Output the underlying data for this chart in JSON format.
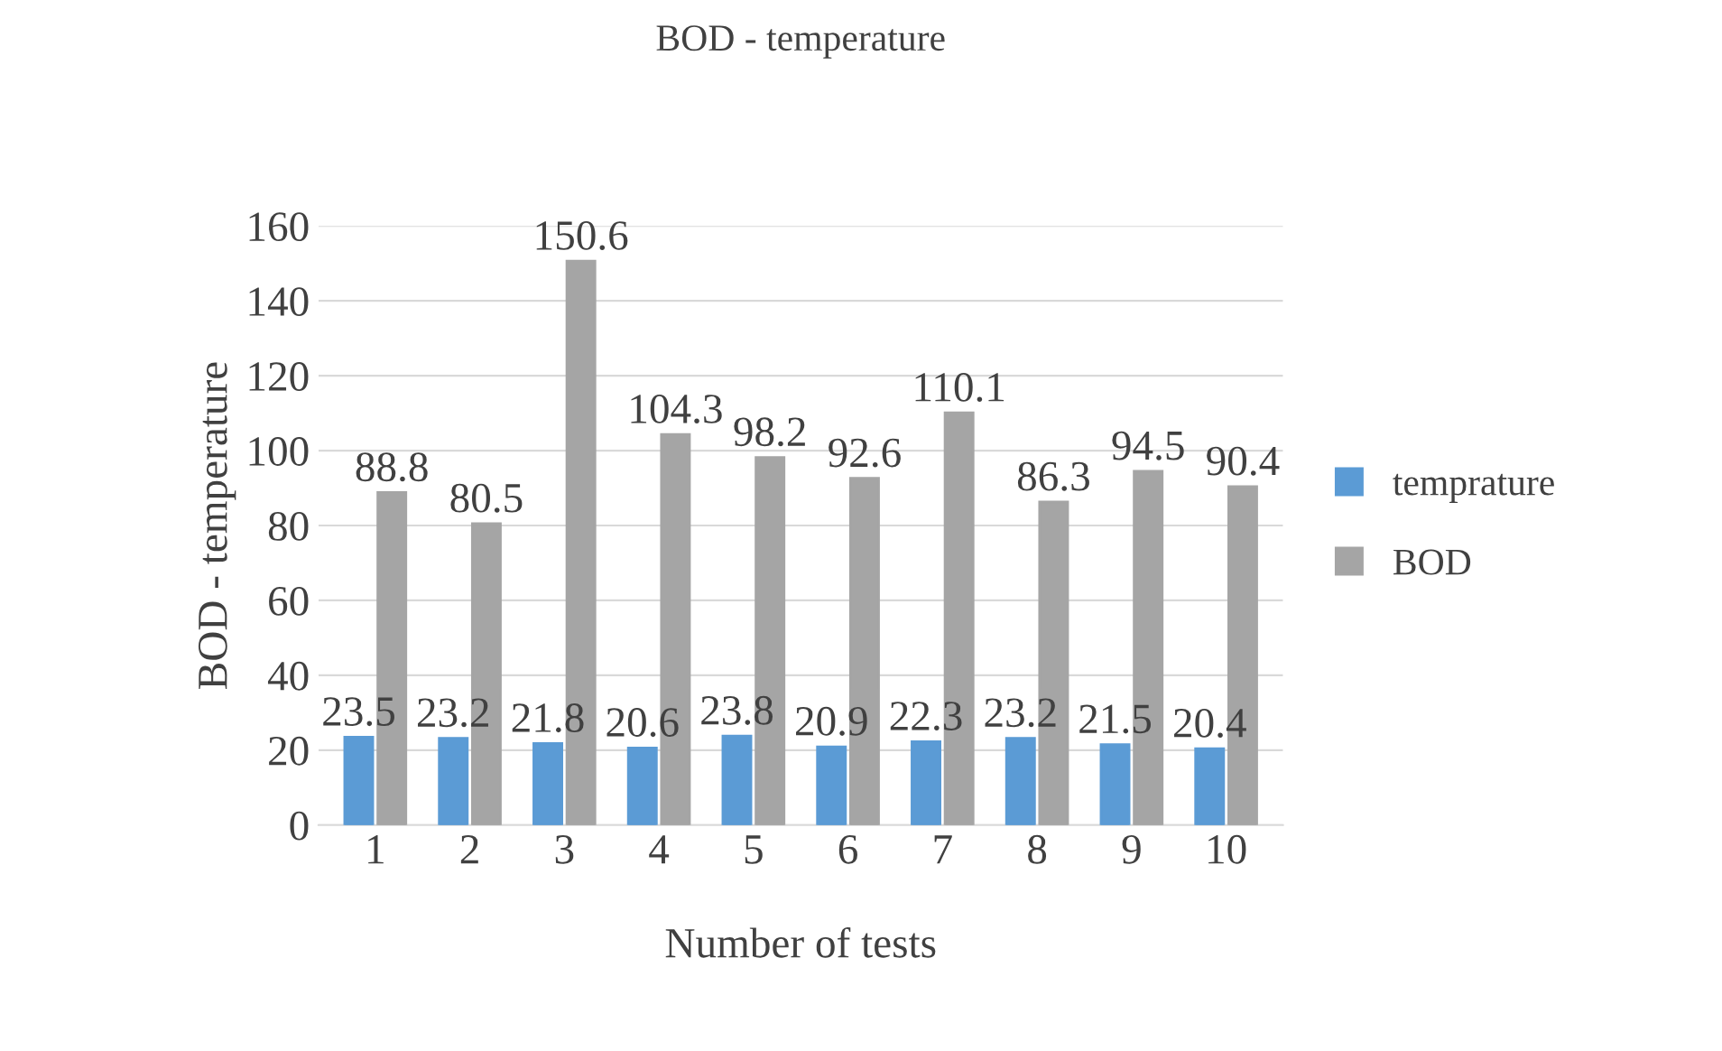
{
  "chart_data": {
    "type": "bar",
    "title": "BOD - temperature",
    "xlabel": "Number of tests",
    "ylabel": "BOD - temperature",
    "categories": [
      "1",
      "2",
      "3",
      "4",
      "5",
      "6",
      "7",
      "8",
      "9",
      "10"
    ],
    "series": [
      {
        "name": "temprature",
        "color": "#5b9bd5",
        "values": [
          23.5,
          23.2,
          21.8,
          20.6,
          23.8,
          20.9,
          22.3,
          23.2,
          21.5,
          20.4
        ]
      },
      {
        "name": "BOD",
        "color": "#a5a5a5",
        "values": [
          88.8,
          80.5,
          150.6,
          104.3,
          98.2,
          92.6,
          110.1,
          86.3,
          94.5,
          90.4
        ]
      }
    ],
    "ylim": [
      0,
      160
    ],
    "yticks": [
      0,
      20,
      40,
      60,
      80,
      100,
      120,
      140,
      160
    ],
    "grid": "y",
    "legend": "right",
    "data_labels": true
  }
}
